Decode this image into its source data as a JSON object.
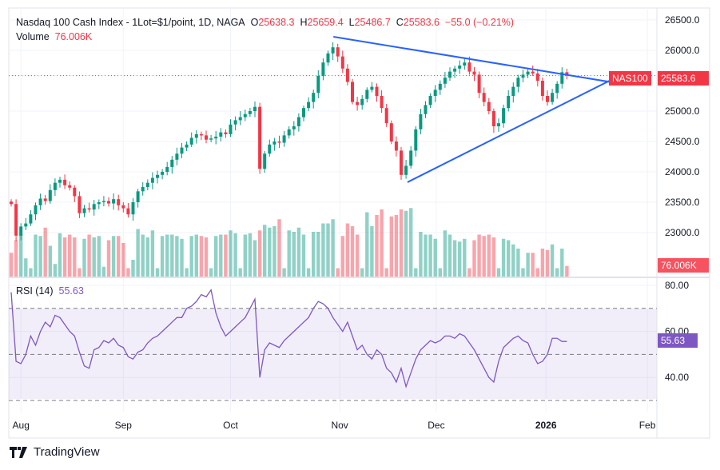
{
  "header": {
    "symbol_desc": "Nasdaq 100 Cash Index - 1Lot=$1/point, 1D, NAGA",
    "open_label": "O",
    "open": "25638.3",
    "high_label": "H",
    "high": "25659.4",
    "low_label": "L",
    "low": "25486.7",
    "close_label": "C",
    "close": "25583.6",
    "change": "−55.0 (−0.21%)",
    "volume_label": "Volume",
    "volume": "76.006K"
  },
  "rsi": {
    "label": "RSI (14)",
    "value": "55.63"
  },
  "price_axis": [
    "26500.0",
    "26000.0",
    "25000.0",
    "24500.0",
    "24000.0",
    "23500.0",
    "23000.0"
  ],
  "price_axis_values": [
    26500,
    26000,
    25000,
    24500,
    24000,
    23500,
    23000
  ],
  "rsi_axis": [
    "80.00",
    "60.00",
    "40.00"
  ],
  "rsi_axis_values": [
    80,
    60,
    40
  ],
  "rsi_levels": [
    70,
    50,
    30
  ],
  "symbol_tag": "NAS100",
  "last_price_tag": "25583.6",
  "volume_tag": "76.006K",
  "rsi_tag": "55.63",
  "time_axis": [
    {
      "label": "Aug",
      "bar": 2,
      "bold": false
    },
    {
      "label": "Sep",
      "bar": 23,
      "bold": false
    },
    {
      "label": "Oct",
      "bar": 45,
      "bold": false
    },
    {
      "label": "Nov",
      "bar": 67.4,
      "bold": false
    },
    {
      "label": "Dec",
      "bar": 87.2,
      "bold": false
    },
    {
      "label": "2026",
      "bar": 109.7,
      "bold": true
    },
    {
      "label": "Feb",
      "bar": 130.5,
      "bold": false
    }
  ],
  "footer": {
    "brand": "TradingView"
  },
  "colors": {
    "up": "#089981",
    "down": "#f23645",
    "rsi": "#7e57c2",
    "trendline": "#2962ff"
  },
  "chart_data": {
    "type": "candlestick",
    "closes": [
      23470,
      22950,
      23100,
      23150,
      23300,
      23450,
      23560,
      23520,
      23700,
      23820,
      23870,
      23780,
      23740,
      23600,
      23320,
      23400,
      23380,
      23470,
      23500,
      23520,
      23480,
      23550,
      23450,
      23400,
      23300,
      23500,
      23680,
      23750,
      23820,
      23900,
      23950,
      24000,
      24080,
      24200,
      24300,
      24400,
      24450,
      24560,
      24620,
      24600,
      24530,
      24550,
      24580,
      24650,
      24620,
      24780,
      24850,
      24900,
      24950,
      25000,
      25070,
      24050,
      24300,
      24450,
      24500,
      24480,
      24600,
      24700,
      24750,
      24900,
      25050,
      25150,
      25300,
      25580,
      25800,
      25950,
      26050,
      25900,
      25700,
      25480,
      25150,
      25100,
      25200,
      25350,
      25400,
      25250,
      25050,
      24800,
      24500,
      24350,
      23950,
      24100,
      24350,
      24700,
      24950,
      25100,
      25250,
      25350,
      25450,
      25550,
      25650,
      25700,
      25750,
      25800,
      25650,
      25600,
      25300,
      25150,
      25000,
      24750,
      24800,
      25050,
      25250,
      25400,
      25550,
      25600,
      25650,
      25620,
      25500,
      25250,
      25150,
      25300,
      25450,
      25640,
      25583.6
    ],
    "volumes_k": [
      170,
      260,
      300,
      130,
      60,
      300,
      290,
      350,
      220,
      90,
      310,
      280,
      300,
      280,
      60,
      270,
      300,
      280,
      290,
      70,
      260,
      290,
      290,
      240,
      60,
      120,
      340,
      300,
      280,
      330,
      60,
      290,
      300,
      300,
      290,
      270,
      60,
      290,
      300,
      290,
      280,
      60,
      290,
      300,
      300,
      330,
      310,
      60,
      300,
      310,
      260,
      330,
      370,
      350,
      360,
      410,
      60,
      330,
      320,
      350,
      300,
      60,
      320,
      320,
      380,
      380,
      410,
      60,
      290,
      380,
      360,
      300,
      60,
      460,
      360,
      440,
      480,
      60,
      430,
      440,
      480,
      470,
      490,
      60,
      320,
      300,
      300,
      270,
      60,
      330,
      300,
      260,
      250,
      270,
      60,
      260,
      300,
      290,
      300,
      280,
      60,
      270,
      260,
      230,
      200,
      60,
      170,
      170,
      60,
      200,
      190,
      230,
      60,
      200,
      76.006
    ],
    "rsi": [
      77,
      47,
      46,
      50,
      58,
      54,
      60,
      64,
      62,
      67,
      66,
      63,
      60,
      58,
      51,
      45,
      44,
      52,
      53,
      56,
      55,
      57,
      54,
      53,
      49,
      48,
      51,
      52,
      55,
      57,
      58,
      60,
      62,
      64,
      66,
      66,
      70,
      71,
      73,
      76,
      75,
      78,
      68,
      62,
      58,
      60,
      62,
      64,
      66,
      70,
      74,
      40,
      52,
      55,
      54,
      53,
      56,
      58,
      60,
      62,
      64,
      66,
      70,
      73,
      72,
      70,
      66,
      63,
      60,
      64,
      58,
      52,
      54,
      50,
      48,
      52,
      50,
      44,
      42,
      38,
      44,
      36,
      42,
      48,
      52,
      54,
      56,
      55,
      56,
      58,
      58,
      57,
      59,
      58,
      55,
      52,
      48,
      44,
      40,
      38,
      47,
      53,
      55,
      57,
      58,
      56,
      55,
      50,
      46,
      47,
      50,
      57,
      57,
      55.63,
      55.63
    ],
    "trendlines": [
      {
        "from": {
          "bar": 66.1,
          "price": 26224
        },
        "to": {
          "bar": 124.4,
          "price": 25460
        }
      },
      {
        "from": {
          "bar": 81.3,
          "price": 23830
        },
        "to": {
          "bar": 124,
          "price": 25550
        }
      }
    ],
    "last_price": 25583.6,
    "price_range": [
      22700,
      26650
    ],
    "rsi_range": [
      27,
      82
    ]
  }
}
